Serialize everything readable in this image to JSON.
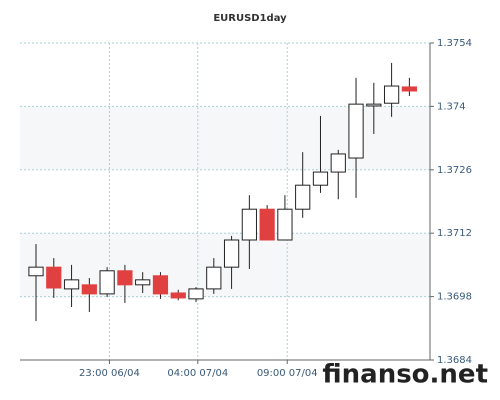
{
  "chart_data": {
    "type": "candlestick",
    "title": "EURUSD1day",
    "up_color": "#ffffff",
    "down_color": "#e04040",
    "xlim": [
      -0.9,
      22.16
    ],
    "xticks": [
      {
        "value": 4.13,
        "label": "23:00 06/04"
      },
      {
        "value": 9.1,
        "label": "04:00 07/04"
      },
      {
        "value": 14.13,
        "label": "09:00 07/04"
      }
    ],
    "ylim": [
      1.3684,
      1.3754
    ],
    "yticks": [
      1.3684,
      1.3698,
      1.3712,
      1.3726,
      1.374,
      1.3754
    ],
    "grid": true,
    "open": [
      1.37026,
      1.37045,
      1.36997,
      1.37006,
      1.36986,
      1.37037,
      1.37006,
      1.37026,
      1.36988,
      1.36975,
      1.36997,
      1.37045,
      1.37105,
      1.37173,
      1.37105,
      1.37173,
      1.37226,
      1.37255,
      1.37286,
      1.37401,
      1.37407,
      1.37443
    ],
    "high": [
      1.37096,
      1.37065,
      1.3705,
      1.37021,
      1.37045,
      1.3705,
      1.37034,
      1.37034,
      1.36995,
      1.37001,
      1.37065,
      1.37114,
      1.37204,
      1.37182,
      1.37204,
      1.37299,
      1.37379,
      1.37304,
      1.37463,
      1.37452,
      1.37496,
      1.37463
    ],
    "low": [
      1.36926,
      1.36977,
      1.36957,
      1.36946,
      1.36979,
      1.36966,
      1.36988,
      1.36975,
      1.36972,
      1.36968,
      1.36986,
      1.36997,
      1.37041,
      1.37105,
      1.37105,
      1.37154,
      1.37209,
      1.37195,
      1.37198,
      1.37339,
      1.37377,
      1.37423
    ],
    "close": [
      1.37045,
      1.36999,
      1.37017,
      1.36986,
      1.37037,
      1.37006,
      1.37017,
      1.36986,
      1.36977,
      1.36997,
      1.37045,
      1.37105,
      1.37173,
      1.37105,
      1.37173,
      1.37226,
      1.37255,
      1.37295,
      1.37405,
      1.37405,
      1.37445,
      1.37434
    ],
    "watermark": "finanso.net"
  }
}
